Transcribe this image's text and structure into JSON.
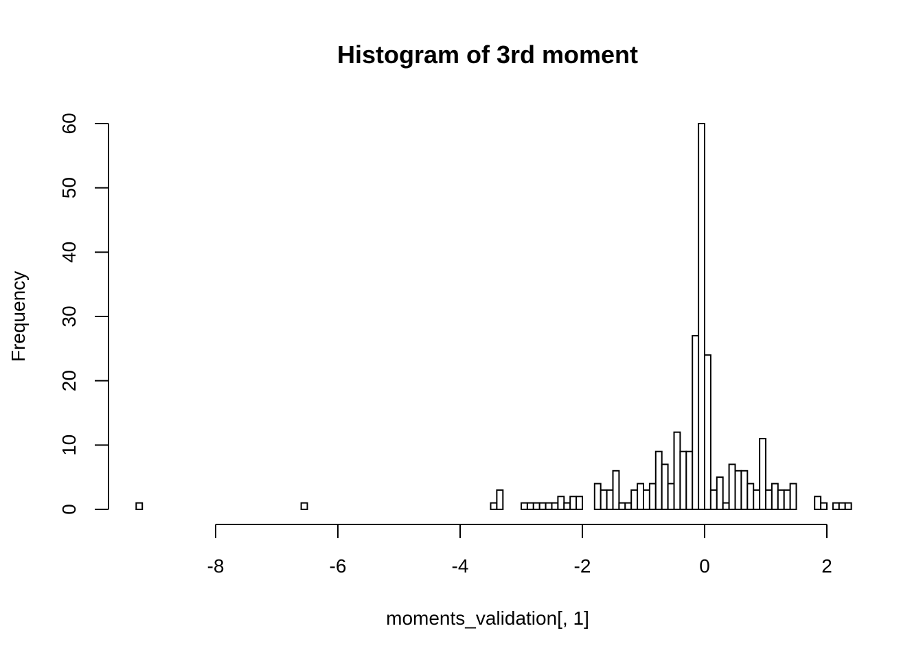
{
  "chart_data": {
    "type": "bar",
    "title": "Histogram of 3rd moment",
    "xlabel": "moments_validation[, 1]",
    "ylabel": "Frequency",
    "bin_width": 0.1,
    "bin_start": -9.3,
    "xlim": [
      -9.3,
      2.2
    ],
    "ylim": [
      0,
      60
    ],
    "xticks": [
      -8,
      -6,
      -4,
      -2,
      0,
      2
    ],
    "xtick_labels": [
      "-8",
      "-6",
      "-4",
      "-2",
      "0",
      "2"
    ],
    "yticks": [
      0,
      10,
      20,
      30,
      40,
      50,
      60
    ],
    "ytick_labels": [
      "0",
      "10",
      "20",
      "30",
      "40",
      "50",
      "60"
    ],
    "counts": [
      1,
      0,
      0,
      0,
      0,
      0,
      0,
      0,
      0,
      0,
      0,
      0,
      0,
      0,
      0,
      0,
      0,
      0,
      0,
      0,
      0,
      0,
      0,
      0,
      0,
      0,
      0,
      1,
      0,
      0,
      0,
      0,
      0,
      0,
      0,
      0,
      0,
      0,
      0,
      0,
      0,
      0,
      0,
      0,
      0,
      0,
      0,
      0,
      0,
      0,
      0,
      0,
      0,
      0,
      0,
      0,
      0,
      0,
      1,
      3,
      0,
      0,
      0,
      1,
      1,
      1,
      1,
      1,
      1,
      2,
      1,
      2,
      2,
      0,
      0,
      4,
      3,
      3,
      6,
      1,
      1,
      3,
      4,
      3,
      4,
      9,
      7,
      4,
      12,
      9,
      9,
      27,
      60,
      24,
      3,
      5,
      1,
      7,
      6,
      6,
      4,
      3,
      11,
      3,
      4,
      3,
      3,
      4,
      0,
      0,
      0,
      2,
      1,
      0,
      1,
      1,
      1
    ],
    "fill": "#ffffff",
    "stroke": "#000000"
  }
}
